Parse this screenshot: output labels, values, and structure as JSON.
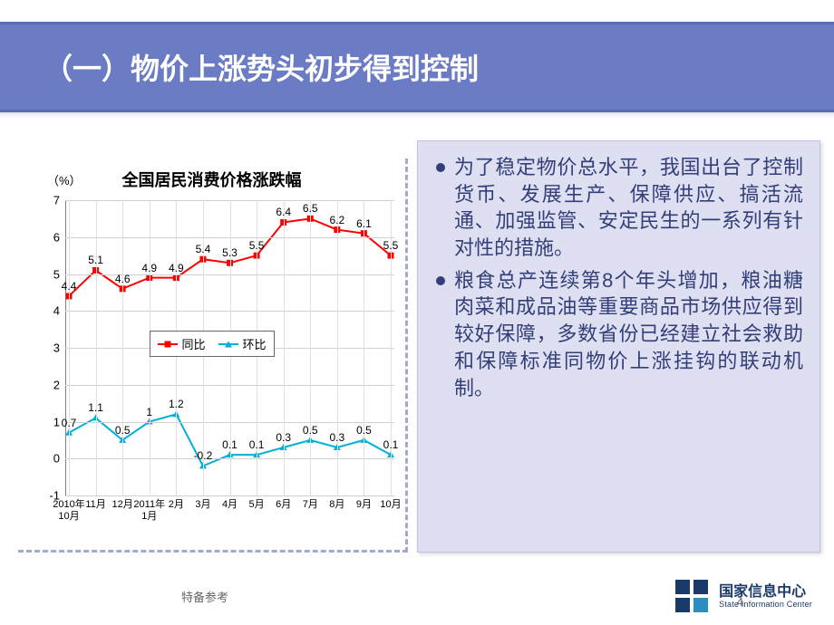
{
  "slide": {
    "title": "（一）物价上涨势头初步得到控制",
    "title_bg": "#6b7bc4",
    "title_border": "#5a6bb3",
    "title_color": "#ffffff",
    "title_fontsize": 32
  },
  "chart": {
    "type": "line",
    "title": "全国居民消费价格涨跌幅",
    "y_unit": "（%）",
    "ylim": [
      -1,
      7
    ],
    "ytick_step": 1,
    "categories": [
      "2010年10月",
      "11月",
      "12月",
      "2011年1月",
      "2月",
      "3月",
      "4月",
      "5月",
      "6月",
      "7月",
      "8月",
      "9月",
      "10月"
    ],
    "series1": {
      "name": "同比",
      "color": "#ff0000",
      "marker": "square",
      "values": [
        4.4,
        5.1,
        4.6,
        4.9,
        4.9,
        5.4,
        5.3,
        5.5,
        6.4,
        6.5,
        6.2,
        6.1,
        5.5
      ]
    },
    "series2": {
      "name": "环比",
      "color": "#00b0d8",
      "marker": "triangle",
      "values": [
        0.7,
        1.1,
        0.5,
        1.0,
        1.2,
        -0.2,
        0.1,
        0.1,
        0.3,
        0.5,
        0.3,
        0.5,
        0.1
      ]
    },
    "grid_color": "#d0d0d0",
    "axis_color": "#808080",
    "title_fontsize": 18,
    "label_fontsize": 13,
    "value_fontsize": 12
  },
  "panel": {
    "bg": "#dedff0",
    "text_color": "#333f7a",
    "fontsize": 22,
    "bullets": [
      "为了稳定物价总水平，我国出台了控制货币、发展生产、保障供应、搞活流通、加强监管、安定民生的一系列有针对性的措施。",
      "粮食总产连续第8个年头增加，粮油糖肉菜和成品油等重要商品市场供应得到较好保障，多数省份已经建立社会救助和保障标准同物价上涨挂钩的联动机制。"
    ]
  },
  "footer": {
    "ref_text": "特备参考",
    "page_number": "4",
    "org_cn": "国家信息中心",
    "org_en": "State Information Center"
  }
}
